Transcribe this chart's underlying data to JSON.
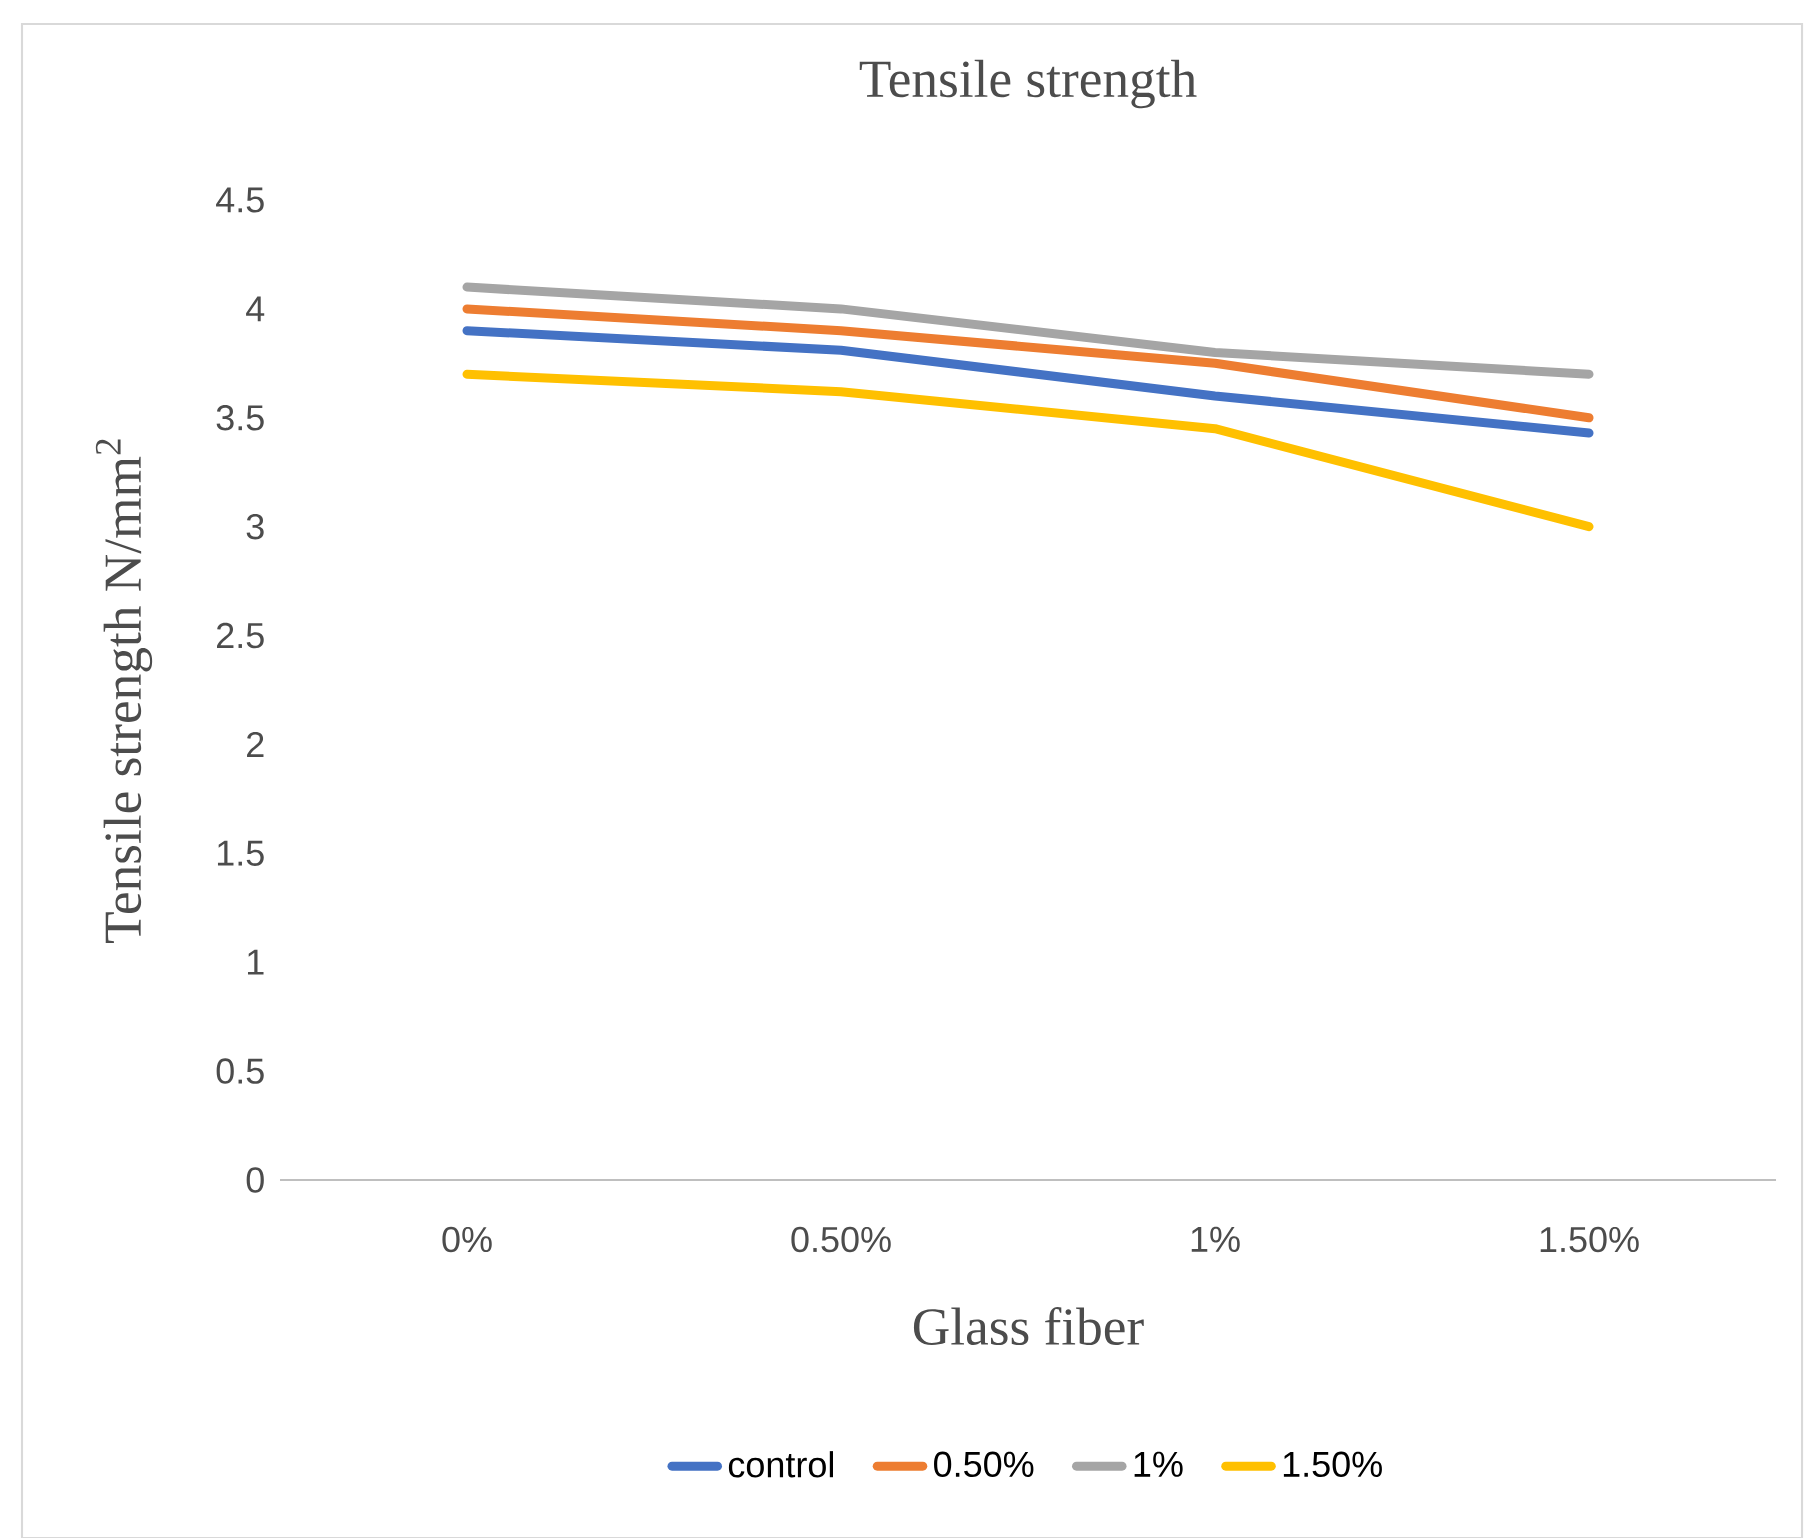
{
  "chart_data": {
    "type": "line",
    "title": "Tensile strength",
    "xlabel": "Glass fiber",
    "ylabel": "Tensile strength N/mm$^{2}$",
    "categories": [
      "0%",
      "0.50%",
      "1%",
      "1.50%"
    ],
    "ylim": [
      0,
      4.5
    ],
    "yticks": [
      0,
      0.5,
      1,
      1.5,
      2,
      2.5,
      3,
      3.5,
      4,
      4.5
    ],
    "series": [
      {
        "name": "control",
        "color": "#4472c4",
        "values": [
          3.9,
          3.81,
          3.6,
          3.43
        ]
      },
      {
        "name": "0.50%",
        "color": "#ed7d31",
        "values": [
          4.0,
          3.9,
          3.75,
          3.5
        ]
      },
      {
        "name": "1%",
        "color": "#a5a5a5",
        "values": [
          4.1,
          4.0,
          3.8,
          3.7
        ]
      },
      {
        "name": "1.50%",
        "color": "#ffc000",
        "values": [
          3.7,
          3.62,
          3.45,
          3.0
        ]
      }
    ],
    "legend": "bottom",
    "grid": false,
    "marker": "none",
    "line_style": "solid"
  }
}
